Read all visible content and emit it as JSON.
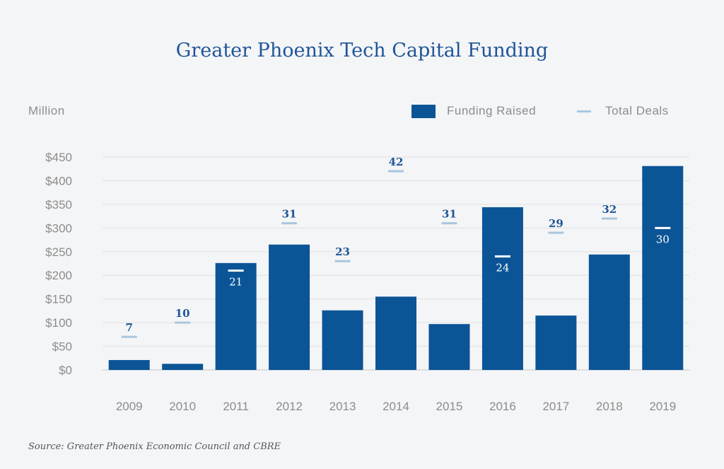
{
  "chart_data": {
    "type": "bar",
    "title": "Greater Phoenix Tech Capital Funding",
    "ylabel": "Million",
    "xlabel": "",
    "ylim": [
      0,
      450
    ],
    "yticks": [
      "$0",
      "$50",
      "$100",
      "$150",
      "$200",
      "$250",
      "$300",
      "$350",
      "$400",
      "$450"
    ],
    "ytick_values": [
      0,
      50,
      100,
      150,
      200,
      250,
      300,
      350,
      400,
      450
    ],
    "grid": true,
    "legend_placement": "top-right",
    "categories": [
      "2009",
      "2010",
      "2011",
      "2012",
      "2013",
      "2014",
      "2015",
      "2016",
      "2017",
      "2018",
      "2019"
    ],
    "series": [
      {
        "name": "Funding Raised",
        "type": "bar",
        "color": "#0b5597",
        "values": [
          21,
          13,
          226,
          265,
          126,
          155,
          97,
          344,
          115,
          244,
          431
        ]
      },
      {
        "name": "Total Deals",
        "type": "marker",
        "color": "#a9c6dd",
        "values": [
          7,
          10,
          21,
          31,
          23,
          42,
          31,
          24,
          29,
          32,
          30
        ]
      }
    ],
    "source": "Source: Greater Phoenix Economic Council and CBRE"
  }
}
